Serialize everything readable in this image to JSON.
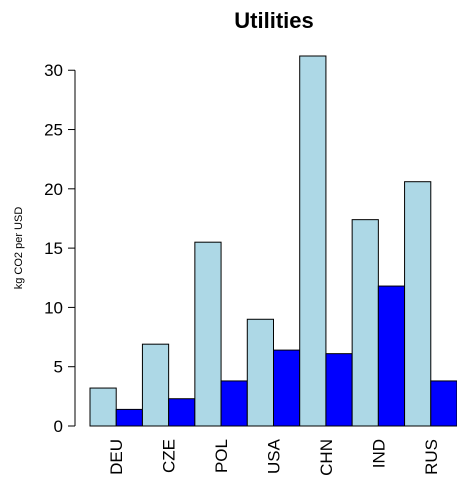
{
  "chart_data": {
    "type": "bar",
    "title": "Utilities",
    "xlabel": "",
    "ylabel": "kg CO2 per USD",
    "categories": [
      "DEU",
      "CZE",
      "POL",
      "USA",
      "CHN",
      "IND",
      "RUS"
    ],
    "series": [
      {
        "values": [
          3.2,
          6.9,
          15.5,
          9.0,
          31.2,
          17.4,
          20.6
        ],
        "color": "#add8e6"
      },
      {
        "values": [
          1.4,
          2.3,
          3.8,
          6.4,
          6.1,
          11.8,
          3.8
        ],
        "color": "#0000ff"
      }
    ],
    "ylim": [
      0,
      31.2
    ],
    "yticks": [
      "0",
      "5",
      "10",
      "15",
      "20",
      "25",
      "30"
    ],
    "grid": false,
    "legend": "none"
  }
}
